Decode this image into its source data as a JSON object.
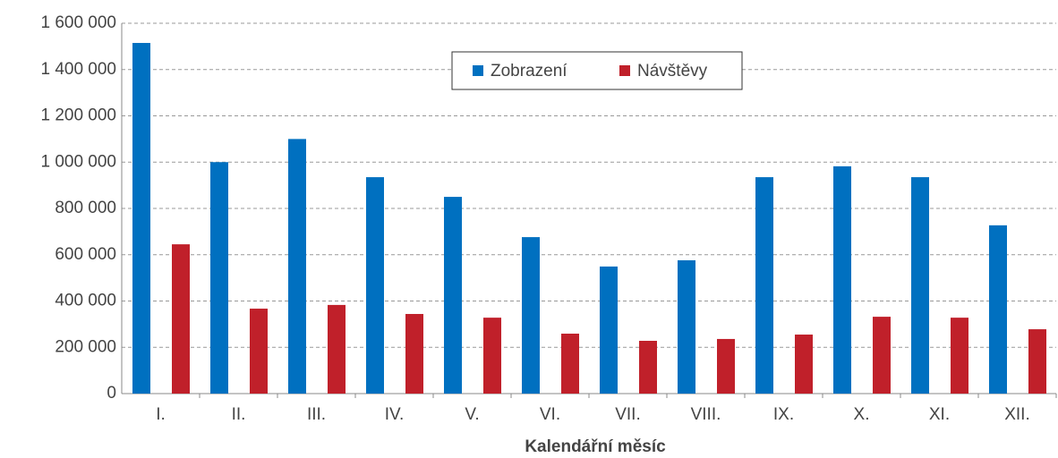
{
  "chart_data": {
    "type": "bar",
    "x_label": "Kalendářní měsíc",
    "categories": [
      "I.",
      "II.",
      "III.",
      "IV.",
      "V.",
      "VI.",
      "VII.",
      "VIII.",
      "IX.",
      "X.",
      "XI.",
      "XII."
    ],
    "series": [
      {
        "name": "Zobrazení",
        "color": "#0070c0",
        "values": [
          1515000,
          1000000,
          1100000,
          935000,
          850000,
          676000,
          549000,
          576000,
          935000,
          982000,
          935000,
          727000
        ]
      },
      {
        "name": "Návštěvy",
        "color": "#c0202a",
        "values": [
          645000,
          367000,
          383000,
          344000,
          328000,
          259000,
          228000,
          236000,
          255000,
          332000,
          328000,
          278000
        ]
      }
    ],
    "ylim": [
      0,
      1600000
    ],
    "yticks": [
      0,
      {
        "value": 200000,
        "label": "200 000"
      },
      {
        "value": 400000,
        "label": "400 000"
      },
      {
        "value": 600000,
        "label": "600 000"
      },
      {
        "value": 800000,
        "label": "800 000"
      },
      {
        "value": 1000000,
        "label": "1 000 000"
      },
      {
        "value": 1200000,
        "label": "1 200 000"
      },
      {
        "value": 1400000,
        "label": "1 400 000"
      },
      {
        "value": 1600000,
        "label": "1 600 000"
      }
    ],
    "grid": true,
    "legend": "top"
  }
}
